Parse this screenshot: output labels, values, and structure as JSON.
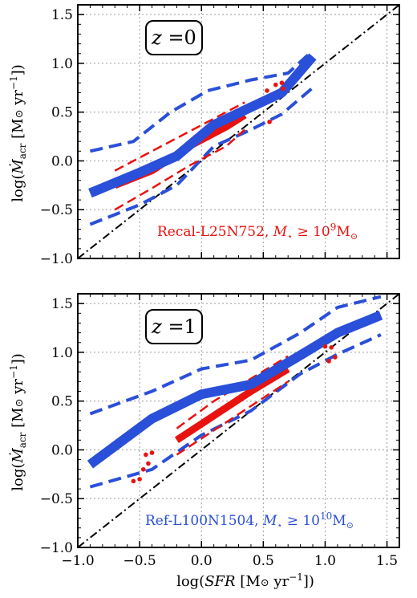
{
  "colors": {
    "red": "#e8120f",
    "blue": "#2a4fd9",
    "black": "#000000",
    "grid": "#9a9a9a"
  },
  "axes": {
    "x_label": "log(SFR [M⊙ yr⁻¹])",
    "x_label_parts": {
      "pre": "log(",
      "var": "SFR",
      "mid": " [M",
      "sun": "⊙",
      "unit": " yr",
      "sup": "−1",
      "post": "])"
    },
    "y_label_parts": {
      "pre": "log(",
      "var": "Ṁ",
      "sub": "acr",
      "mid": " [M",
      "sun": "⊙",
      "unit": " yr",
      "sup": "−1",
      "post": "])"
    },
    "x_ticks": [
      "−1.0",
      "−0.5",
      "0.0",
      "0.5",
      "1.0",
      "1.5"
    ],
    "y_ticks": [
      "−1.0",
      "−0.5",
      "0.0",
      "0.5",
      "1.0",
      "1.5"
    ]
  },
  "chart_data": [
    {
      "type": "line",
      "panel_label": {
        "var": "z",
        "eq": " =0"
      },
      "annotation": {
        "text": "Recal-L25N752, ",
        "var": "M",
        "sub": "⋆",
        "rel": " ≥ 10",
        "sup": "9",
        "unit": "M",
        "sun": "⊙",
        "color": "#e8120f"
      },
      "xlim": [
        -1.0,
        1.6
      ],
      "ylim": [
        -1.0,
        1.6
      ],
      "grid": true,
      "one_to_one_line": [
        [
          -1.0,
          -1.0
        ],
        [
          1.6,
          1.6
        ]
      ],
      "series": [
        {
          "color": "#2a4fd9",
          "style": "median",
          "x": [
            -0.9,
            -0.5,
            -0.2,
            0.1,
            0.4,
            0.65,
            0.9
          ],
          "y": [
            -0.33,
            -0.12,
            0.05,
            0.37,
            0.55,
            0.7,
            1.07
          ]
        },
        {
          "color": "#2a4fd9",
          "style": "percentile",
          "x": [
            -0.9,
            -0.5,
            -0.2,
            0.1,
            0.4,
            0.65,
            0.9
          ],
          "y": [
            -0.65,
            -0.45,
            -0.25,
            0.15,
            0.32,
            0.48,
            0.75
          ]
        },
        {
          "color": "#2a4fd9",
          "style": "percentile",
          "x": [
            -0.9,
            -0.55,
            -0.25,
            0.05,
            0.4,
            0.7,
            0.9
          ],
          "y": [
            0.1,
            0.2,
            0.5,
            0.72,
            0.83,
            0.9,
            1.13
          ]
        },
        {
          "color": "#e8120f",
          "style": "median",
          "x": [
            -0.7,
            -0.4,
            -0.1,
            0.2,
            0.35
          ],
          "y": [
            -0.25,
            -0.1,
            0.15,
            0.35,
            0.47
          ]
        },
        {
          "color": "#e8120f",
          "style": "percentile",
          "x": [
            -0.7,
            -0.4,
            -0.1,
            0.2,
            0.35
          ],
          "y": [
            -0.5,
            -0.28,
            -0.05,
            0.15,
            0.32
          ]
        },
        {
          "color": "#e8120f",
          "style": "percentile",
          "x": [
            -0.7,
            -0.4,
            -0.1,
            0.2,
            0.35
          ],
          "y": [
            -0.1,
            0.1,
            0.3,
            0.5,
            0.6
          ]
        }
      ],
      "points": {
        "color": "#e8120f",
        "x": [
          0.53,
          0.6,
          0.65,
          0.66,
          0.55
        ],
        "y": [
          0.72,
          0.78,
          0.8,
          0.74,
          0.4
        ]
      }
    },
    {
      "type": "line",
      "panel_label": {
        "var": "z",
        "eq": " =1"
      },
      "annotation": {
        "text": "Ref-L100N1504, ",
        "var": "M",
        "sub": "⋆",
        "rel": " ≥ 10",
        "sup": "10",
        "unit": "M",
        "sun": "⊙",
        "color": "#2a4fd9"
      },
      "xlim": [
        -1.0,
        1.6
      ],
      "ylim": [
        -1.0,
        1.6
      ],
      "grid": true,
      "one_to_one_line": [
        [
          -1.0,
          -1.0
        ],
        [
          1.6,
          1.6
        ]
      ],
      "series": [
        {
          "color": "#2a4fd9",
          "style": "median",
          "x": [
            -0.9,
            -0.4,
            0.0,
            0.4,
            0.8,
            1.1,
            1.45
          ],
          "y": [
            -0.15,
            0.32,
            0.57,
            0.67,
            0.97,
            1.2,
            1.38
          ]
        },
        {
          "color": "#2a4fd9",
          "style": "percentile",
          "x": [
            -0.9,
            -0.4,
            0.0,
            0.4,
            0.8,
            1.1,
            1.45
          ],
          "y": [
            -0.38,
            -0.2,
            0.15,
            0.4,
            0.78,
            0.98,
            1.18
          ]
        },
        {
          "color": "#2a4fd9",
          "style": "percentile",
          "x": [
            -0.9,
            -0.4,
            0.0,
            0.4,
            0.8,
            1.1,
            1.45
          ],
          "y": [
            0.37,
            0.6,
            0.83,
            0.92,
            1.2,
            1.46,
            1.57
          ]
        },
        {
          "color": "#e8120f",
          "style": "median",
          "x": [
            -0.2,
            0.1,
            0.4,
            0.7
          ],
          "y": [
            0.1,
            0.35,
            0.6,
            0.83
          ]
        },
        {
          "color": "#e8120f",
          "style": "percentile",
          "x": [
            -0.2,
            0.1,
            0.4,
            0.7
          ],
          "y": [
            -0.05,
            0.2,
            0.45,
            0.7
          ]
        },
        {
          "color": "#e8120f",
          "style": "percentile",
          "x": [
            -0.2,
            0.1,
            0.4,
            0.7
          ],
          "y": [
            0.22,
            0.5,
            0.73,
            0.96
          ]
        }
      ],
      "points": {
        "color": "#e8120f",
        "x": [
          -0.55,
          -0.5,
          -0.45,
          -0.4,
          -0.47,
          -0.43,
          1.0,
          1.05,
          1.08,
          1.03
        ],
        "y": [
          -0.32,
          -0.3,
          -0.05,
          -0.03,
          -0.2,
          -0.14,
          1.06,
          1.05,
          0.95,
          0.91
        ]
      }
    }
  ]
}
